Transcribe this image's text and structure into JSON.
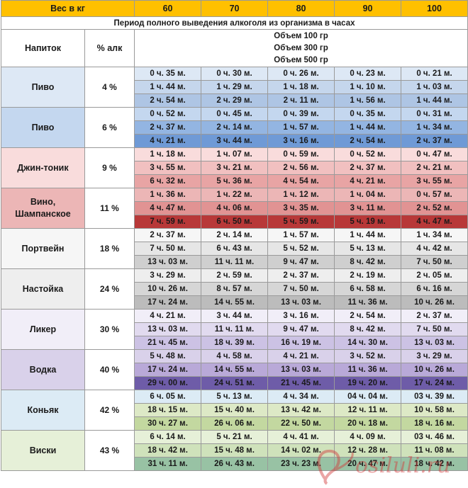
{
  "header": {
    "weight_label": "Вес в кг",
    "weights": [
      "60",
      "70",
      "80",
      "90",
      "100"
    ]
  },
  "period_title": "Период полного выведения алкоголя из организма в часах",
  "columns": {
    "drink": "Напиток",
    "percent": "% алк"
  },
  "volumes": [
    "Объем 100 гр",
    "Объем 300 гр",
    "Объем 500 гр"
  ],
  "colors": {
    "header": "#ffc000",
    "beer4": [
      "#dde8f5",
      "#c5d6ec",
      "#aec5e4"
    ],
    "beer6": [
      "#c4d7ef",
      "#93b5e2",
      "#6f9ad6"
    ],
    "gin": [
      "#f9dcdc",
      "#f1c0c0",
      "#e8a4a4"
    ],
    "wine": [
      "#ecb6b6",
      "#e19393",
      "#b83838"
    ],
    "port": [
      "#f6f6f6",
      "#e6e6e6",
      "#cfcfcf"
    ],
    "tincture": [
      "#eeeeee",
      "#d6d6d6",
      "#bcbcbc"
    ],
    "liqueur": [
      "#f1eef8",
      "#e1daef",
      "#ccc2e4"
    ],
    "vodka": [
      "#d9d1ea",
      "#b9a9d8",
      "#6e5ca8"
    ],
    "cognac": [
      "#dcebf5",
      "#dde9c6",
      "#c3d8a0"
    ],
    "whisky": [
      "#e6f0d8",
      "#cfe2bb",
      "#98c2a4"
    ]
  },
  "drinks": [
    {
      "name": "Пиво",
      "percent": "4 %",
      "rows": [
        [
          "0 ч. 35 м.",
          "0 ч. 30 м.",
          "0 ч. 26 м.",
          "0 ч. 23 м.",
          "0 ч. 21 м."
        ],
        [
          "1 ч. 44 м.",
          "1 ч. 29 м.",
          "1 ч. 18 м.",
          "1 ч. 10 м.",
          "1 ч. 03 м."
        ],
        [
          "2 ч. 54 м.",
          "2 ч. 29 м.",
          "2 ч. 11 м.",
          "1 ч. 56 м.",
          "1 ч. 44 м."
        ]
      ]
    },
    {
      "name": "Пиво",
      "percent": "6 %",
      "rows": [
        [
          "0 ч. 52 м.",
          "0 ч. 45 м.",
          "0 ч. 39 м.",
          "0 ч. 35 м.",
          "0 ч. 31 м."
        ],
        [
          "2 ч. 37 м.",
          "2 ч. 14 м.",
          "1 ч. 57 м.",
          "1 ч. 44 м.",
          "1 ч. 34 м."
        ],
        [
          "4 ч. 21 м.",
          "3 ч. 44 м.",
          "3 ч. 16 м.",
          "2 ч. 54 м.",
          "2 ч. 37 м."
        ]
      ]
    },
    {
      "name": "Джин-тоник",
      "percent": "9 %",
      "rows": [
        [
          "1 ч. 18 м.",
          "1 ч. 07 м.",
          "0 ч. 59 м.",
          "0 ч. 52 м.",
          "0 ч. 47 м."
        ],
        [
          "3 ч. 55 м.",
          "3 ч. 21 м.",
          "2 ч. 56 м.",
          "2 ч. 37 м.",
          "2 ч. 21 м."
        ],
        [
          "6 ч. 32 м.",
          "5 ч. 36 м.",
          "4 ч. 54 м.",
          "4 ч. 21 м.",
          "3 ч. 55 м."
        ]
      ]
    },
    {
      "name": "Вино, Шампанское",
      "percent": "11 %",
      "rows": [
        [
          "1 ч. 36 м.",
          "1 ч. 22 м.",
          "1 ч. 12 м.",
          "1 ч. 04 м.",
          "0 ч. 57 м."
        ],
        [
          "4 ч. 47 м.",
          "4 ч. 06 м.",
          "3 ч. 35 м.",
          "3 ч. 11 м.",
          "2 ч. 52 м."
        ],
        [
          "7 ч. 59 м.",
          "6 ч. 50 м.",
          "5 ч. 59 м.",
          "5 ч. 19 м.",
          "4 ч. 47 м."
        ]
      ]
    },
    {
      "name": "Портвейн",
      "percent": "18 %",
      "rows": [
        [
          "2 ч. 37 м.",
          "2 ч. 14 м.",
          "1 ч. 57 м.",
          "1 ч. 44 м.",
          "1 ч. 34 м."
        ],
        [
          "7 ч. 50 м.",
          "6 ч. 43 м.",
          "5 ч. 52 м.",
          "5 ч. 13 м.",
          "4 ч. 42 м."
        ],
        [
          "13 ч. 03 м.",
          "11 ч. 11 м.",
          "9 ч. 47 м.",
          "8 ч. 42 м.",
          "7 ч. 50 м."
        ]
      ]
    },
    {
      "name": "Настойка",
      "percent": "24 %",
      "rows": [
        [
          "3 ч. 29 м.",
          "2 ч. 59 м.",
          "2 ч. 37 м.",
          "2 ч. 19 м.",
          "2 ч. 05 м."
        ],
        [
          "10 ч. 26 м.",
          "8 ч. 57 м.",
          "7 ч. 50 м.",
          "6 ч. 58 м.",
          "6 ч. 16 м."
        ],
        [
          "17 ч. 24 м.",
          "14 ч. 55 м.",
          "13 ч. 03 м.",
          "11 ч. 36 м.",
          "10 ч. 26 м."
        ]
      ]
    },
    {
      "name": "Ликер",
      "percent": "30 %",
      "rows": [
        [
          "4 ч. 21 м.",
          "3 ч. 44 м.",
          "3 ч. 16 м.",
          "2 ч. 54 м.",
          "2 ч. 37 м."
        ],
        [
          "13 ч. 03 м.",
          "11 ч. 11 м.",
          "9 ч. 47 м.",
          "8 ч. 42 м.",
          "7 ч. 50 м."
        ],
        [
          "21 ч. 45 м.",
          "18 ч. 39 м.",
          "16 ч. 19 м.",
          "14 ч. 30 м.",
          "13 ч. 03 м."
        ]
      ]
    },
    {
      "name": "Водка",
      "percent": "40 %",
      "rows": [
        [
          "5 ч. 48 м.",
          "4 ч. 58 м.",
          "4 ч. 21 м.",
          "3 ч. 52 м.",
          "3 ч. 29 м."
        ],
        [
          "17 ч. 24 м.",
          "14 ч. 55 м.",
          "13 ч. 03 м.",
          "11 ч. 36 м.",
          "10 ч. 26 м."
        ],
        [
          "29 ч. 00 м.",
          "24 ч. 51 м.",
          "21 ч. 45 м.",
          "19 ч. 20 м.",
          "17 ч. 24 м."
        ]
      ]
    },
    {
      "name": "Коньяк",
      "percent": "42 %",
      "rows": [
        [
          "6 ч. 05 м.",
          "5 ч. 13 м.",
          "4 ч. 34 м.",
          "04 ч. 04 м.",
          "03 ч. 39 м."
        ],
        [
          "18 ч. 15 м.",
          "15 ч. 40 м.",
          "13 ч. 42 м.",
          "12 ч. 11 м.",
          "10 ч. 58 м."
        ],
        [
          "30 ч. 27 м.",
          "26 ч. 06 м.",
          "22 ч. 50 м.",
          "20 ч. 18 м.",
          "18 ч. 16 м."
        ]
      ]
    },
    {
      "name": "Виски",
      "percent": "43 %",
      "rows": [
        [
          "6 ч. 14 м.",
          "5 ч. 21 м.",
          "4 ч. 41 м.",
          "4 ч. 09 м.",
          "03 ч. 46 м."
        ],
        [
          "18 ч. 42 м.",
          "15 ч. 48 м.",
          "14 ч. 02 м.",
          "12 ч. 28 м.",
          "11 ч. 08 м."
        ],
        [
          "31 ч. 11 м.",
          "26 ч. 43 м.",
          "23 ч. 23 м.",
          "20 ч. 47 м.",
          "18 ч. 42 м."
        ]
      ]
    }
  ],
  "watermark_text": "Posiluli.ru"
}
